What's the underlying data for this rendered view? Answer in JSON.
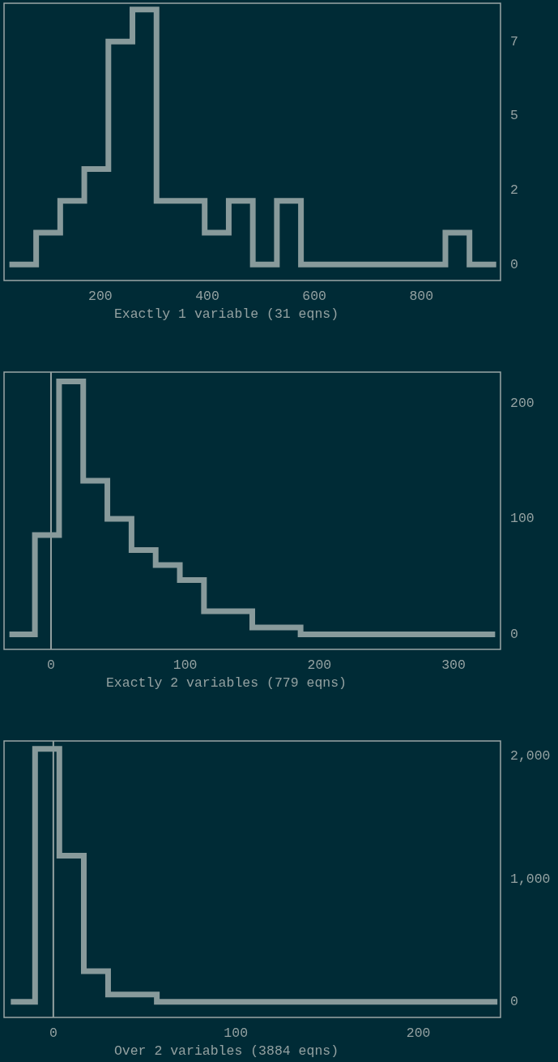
{
  "chart_data": [
    {
      "type": "histogram",
      "xlabel": "Exactly 1 variable (31 eqns)",
      "color": "#889a9b",
      "bins": [
        30,
        80,
        125,
        170,
        215,
        260,
        305,
        350,
        395,
        440,
        485,
        530,
        575,
        620,
        665,
        710,
        755,
        800,
        845,
        890,
        940
      ],
      "values": [
        0,
        1,
        2,
        3,
        7,
        8,
        2,
        2,
        1,
        2,
        0,
        2,
        0,
        0,
        0,
        0,
        0,
        0,
        1,
        0
      ],
      "xlim": [
        20,
        948
      ],
      "xticks": [
        200,
        400,
        600,
        800
      ],
      "ylim": [
        -0.5,
        8.2
      ],
      "yticks": [
        0,
        {
          "value": 2.33,
          "label": "2"
        },
        {
          "value": 4.67,
          "label": "5"
        },
        7
      ]
    },
    {
      "type": "histogram",
      "xlabel": "Exactly 2 variables (779 eqns)",
      "color": "#889a9b",
      "bins": [
        -31,
        -12,
        6,
        24,
        42,
        60,
        78,
        96,
        114,
        132,
        150,
        168,
        186,
        204,
        222,
        240,
        258,
        276,
        294,
        312,
        331
      ],
      "values": [
        0,
        86,
        219,
        133,
        100,
        73,
        60,
        47,
        20,
        20,
        6,
        6,
        0,
        0,
        0,
        0,
        0,
        0,
        0,
        0
      ],
      "xlim": [
        -35,
        335
      ],
      "xticks": [
        0,
        100,
        200,
        300
      ],
      "ylim": [
        -13,
        227
      ],
      "yticks": [
        0,
        100,
        200
      ],
      "ref_lines": [
        {
          "axis": "x",
          "value": 0,
          "color": "#93a1a1"
        }
      ]
    },
    {
      "type": "histogram",
      "xlabel": "Over 2 variables (3884 eqns)",
      "color": "#889a9b",
      "bins": [
        -23.3,
        -10,
        3.3,
        16.7,
        30,
        43.3,
        56.7,
        70,
        83.3,
        96.7,
        110,
        123.3,
        136.7,
        150,
        163.3,
        176.7,
        190,
        203.3,
        216.7,
        230,
        243.3
      ],
      "values": [
        0,
        2060,
        1190,
        250,
        60,
        60,
        0,
        0,
        0,
        0,
        0,
        0,
        0,
        0,
        0,
        0,
        0,
        0,
        0,
        0
      ],
      "xlim": [
        -27,
        245
      ],
      "xticks": [
        0,
        100,
        200
      ],
      "ylim": [
        -127,
        2125
      ],
      "yticks": [
        0,
        {
          "value": 1000,
          "label": "1,000"
        },
        {
          "value": 2000,
          "label": "2,000"
        }
      ],
      "ref_lines": [
        {
          "axis": "x",
          "value": 0,
          "color": "#93a1a1"
        }
      ]
    }
  ]
}
